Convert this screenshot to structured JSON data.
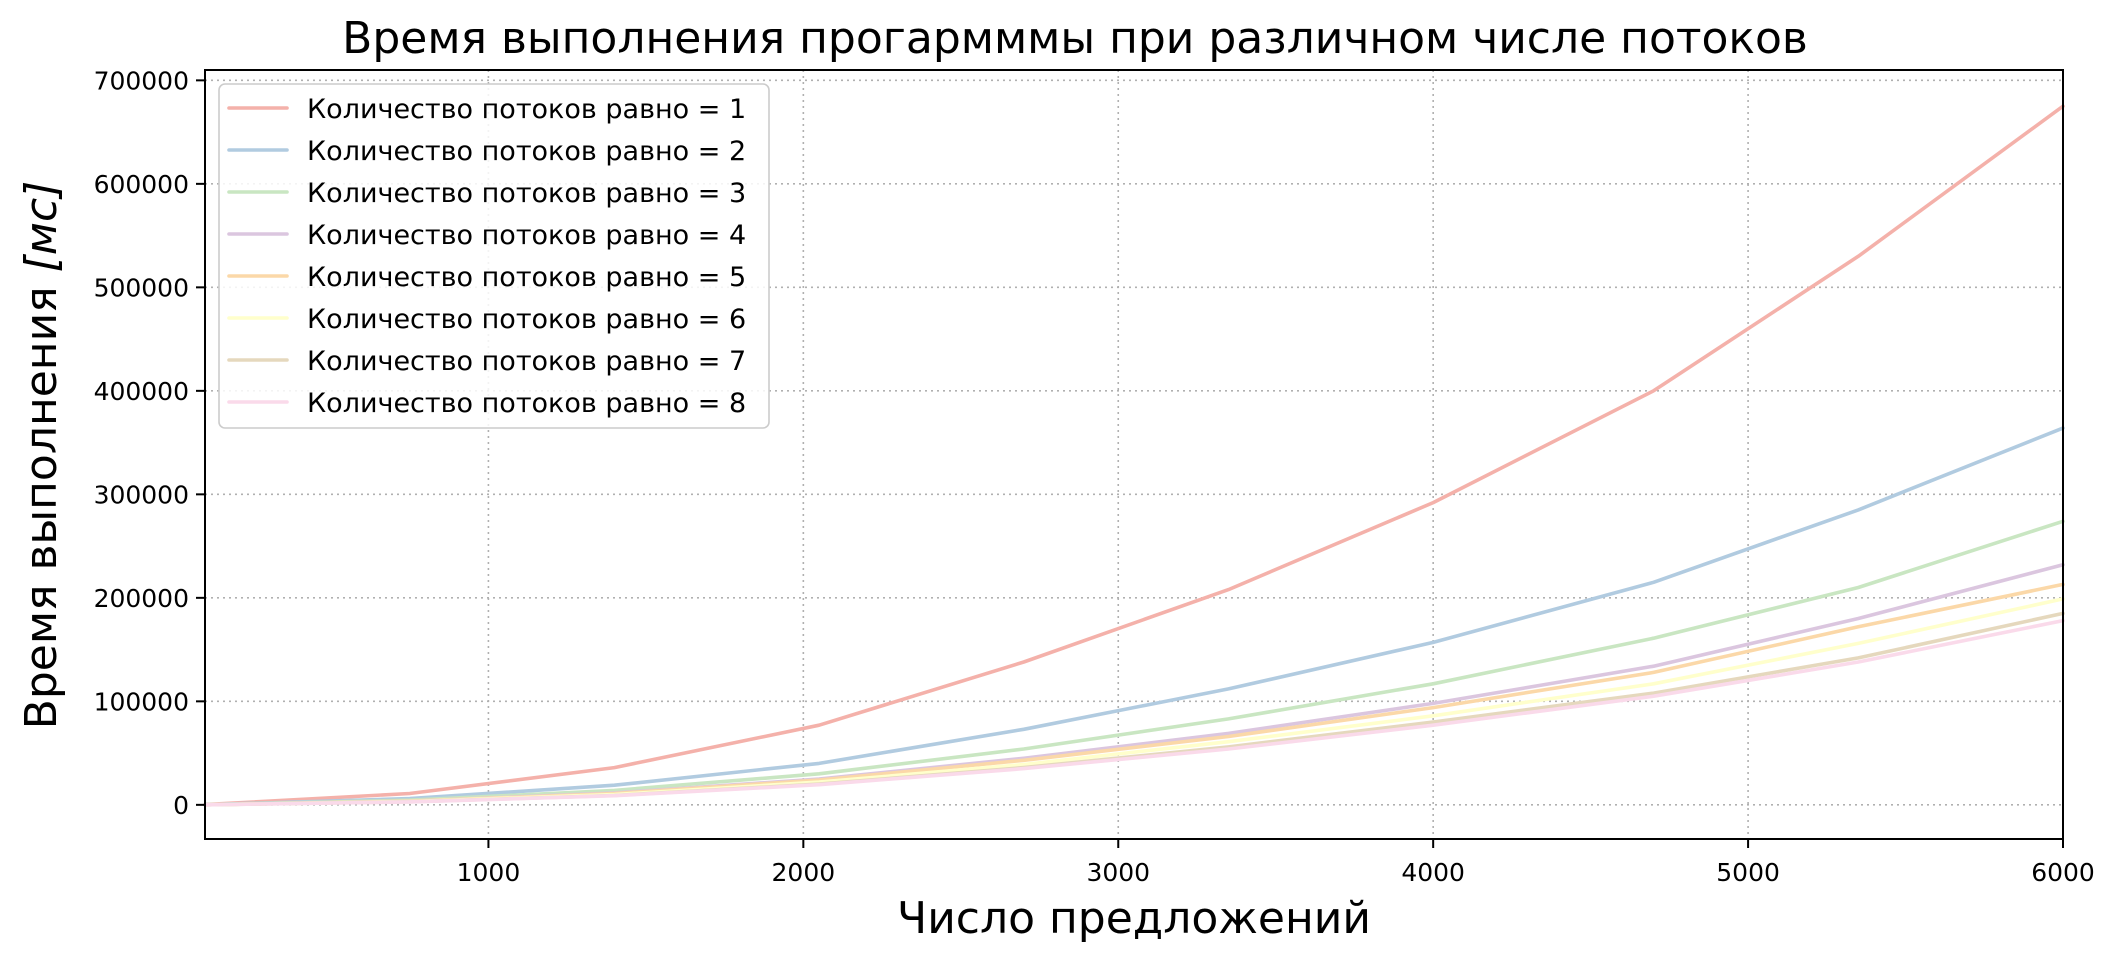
{
  "chart_data": {
    "type": "line",
    "title": "Время выполнения прогармммы при различном числе потоков",
    "xlabel": "Число предложений",
    "ylabel_prefix": "Время выполнения ",
    "ylabel_unit": "[мс]",
    "xlim": [
      100,
      6000
    ],
    "ylim": [
      -33000,
      710000
    ],
    "xticks": [
      1000,
      2000,
      3000,
      4000,
      5000,
      6000
    ],
    "yticks": [
      0,
      100000,
      200000,
      300000,
      400000,
      500000,
      600000,
      700000
    ],
    "grid": true,
    "legend_position": "upper left",
    "x": [
      100,
      750,
      1400,
      2050,
      2700,
      3350,
      4000,
      4700,
      5350,
      6000
    ],
    "series": [
      {
        "name": "Количество потоков равно = 1",
        "color": "#f4b1aa",
        "values": [
          200,
          11000,
          36000,
          77000,
          138000,
          208000,
          292000,
          400000,
          530000,
          675000
        ]
      },
      {
        "name": "Количество потоков равно = 2",
        "color": "#b1cbe0",
        "values": [
          100,
          6000,
          19000,
          40000,
          73000,
          112000,
          157000,
          215000,
          285000,
          364000
        ]
      },
      {
        "name": "Количество потоков равно = 3",
        "color": "#c9e6c2",
        "values": [
          100,
          4500,
          14000,
          30000,
          54000,
          83000,
          117000,
          161000,
          210000,
          274000
        ]
      },
      {
        "name": "Количество потоков равно = 4",
        "color": "#dbc6df",
        "values": [
          80,
          3600,
          11500,
          25000,
          45000,
          69000,
          98000,
          134000,
          180000,
          232000
        ]
      },
      {
        "name": "Количество потоков равно = 5",
        "color": "#fbd8a8",
        "values": [
          80,
          3500,
          11000,
          24000,
          43000,
          66000,
          94000,
          128000,
          172000,
          213000
        ]
      },
      {
        "name": "Количество потоков равно = 6",
        "color": "#ffffcc",
        "values": [
          70,
          3200,
          10000,
          22000,
          39000,
          61000,
          86000,
          117000,
          156000,
          199000
        ]
      },
      {
        "name": "Количество потоков равно = 7",
        "color": "#e5d8bd",
        "values": [
          60,
          2900,
          9000,
          20000,
          36000,
          56000,
          80000,
          108000,
          142000,
          185000
        ]
      },
      {
        "name": "Количество потоков равно = 8",
        "color": "#fadaea",
        "values": [
          60,
          2800,
          8800,
          19500,
          35000,
          54000,
          77000,
          105000,
          138000,
          178000
        ]
      }
    ]
  }
}
